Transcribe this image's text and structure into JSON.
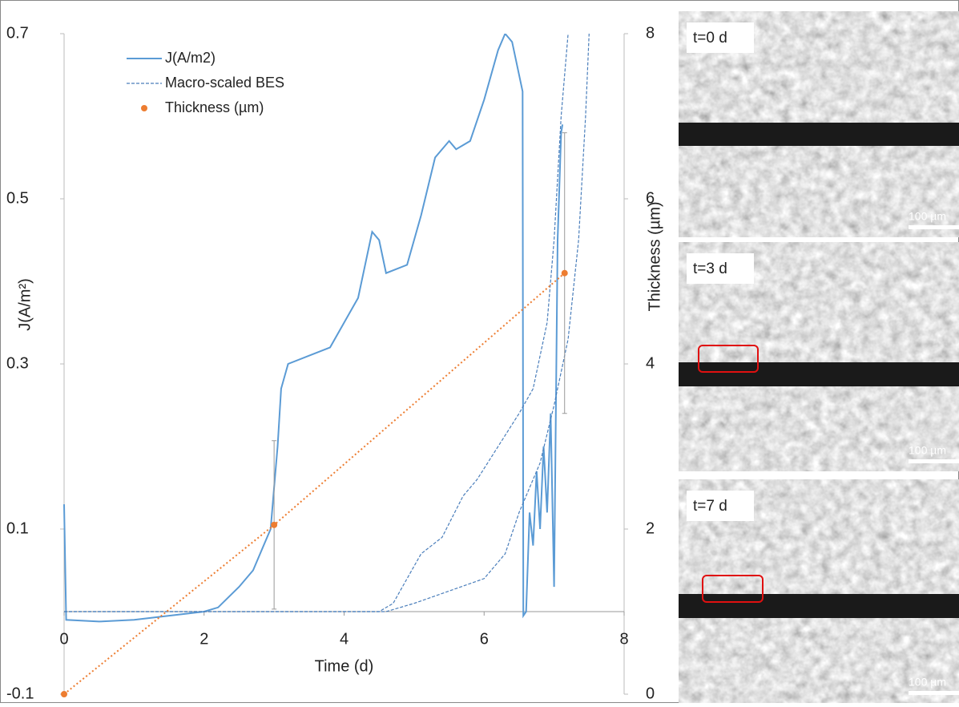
{
  "chart_data": {
    "type": "line",
    "xlabel": "Time (d)",
    "ylabel": "J(A/m²)",
    "y2label": "Thickness (µm)",
    "xlim": [
      0,
      8
    ],
    "xticks": [
      0,
      2,
      4,
      6,
      8
    ],
    "ylim": [
      -0.1,
      0.7
    ],
    "yticks": [
      -0.1,
      0.1,
      0.3,
      0.5,
      0.7
    ],
    "y2lim": [
      0,
      8
    ],
    "y2ticks": [
      0,
      2,
      4,
      6,
      8
    ],
    "series": [
      {
        "name": "J(A/m2)",
        "color": "#5b9bd5",
        "style": "solid",
        "x": [
          0,
          0.03,
          0.5,
          1.0,
          1.5,
          2.0,
          2.2,
          2.5,
          2.7,
          2.85,
          2.95,
          3.0,
          3.05,
          3.1,
          3.2,
          3.5,
          3.8,
          4.0,
          4.2,
          4.4,
          4.5,
          4.6,
          4.9,
          5.1,
          5.3,
          5.5,
          5.6,
          5.8,
          6.0,
          6.2,
          6.3,
          6.4,
          6.55,
          6.56,
          6.6,
          6.65,
          6.7,
          6.75,
          6.8,
          6.85,
          6.9,
          6.95,
          7.0,
          7.05,
          7.1,
          7.12
        ],
        "values": [
          0.13,
          -0.01,
          -0.012,
          -0.01,
          -0.005,
          0.0,
          0.005,
          0.03,
          0.05,
          0.08,
          0.1,
          0.15,
          0.2,
          0.27,
          0.3,
          0.31,
          0.32,
          0.35,
          0.38,
          0.46,
          0.45,
          0.41,
          0.42,
          0.48,
          0.55,
          0.57,
          0.56,
          0.57,
          0.62,
          0.68,
          0.7,
          0.69,
          0.63,
          -0.005,
          0.0,
          0.12,
          0.08,
          0.17,
          0.1,
          0.2,
          0.12,
          0.24,
          0.03,
          0.45,
          0.58,
          0.59
        ]
      },
      {
        "name": "Macro-scaled BES",
        "color": "#4a7ebb",
        "style": "dashed",
        "x": [
          0,
          4.5,
          4.7,
          4.9,
          5.1,
          5.4,
          5.7,
          5.9,
          6.2,
          6.5,
          6.7,
          6.9,
          7.0,
          7.1,
          7.2
        ],
        "values": [
          0,
          0,
          0.01,
          0.04,
          0.07,
          0.09,
          0.14,
          0.16,
          0.2,
          0.24,
          0.27,
          0.35,
          0.45,
          0.6,
          0.7
        ]
      },
      {
        "color": "#4a7ebb",
        "style": "dashed",
        "x": [
          0,
          4.6,
          5.0,
          5.5,
          6.0,
          6.3,
          6.5,
          6.8,
          7.0,
          7.2,
          7.35,
          7.45,
          7.5
        ],
        "values": [
          0,
          0,
          0.01,
          0.025,
          0.04,
          0.07,
          0.12,
          0.18,
          0.25,
          0.33,
          0.45,
          0.6,
          0.7
        ]
      },
      {
        "name": "Thickness (µm)",
        "color": "#ed7d31",
        "style": "dotted-markers",
        "axis": "y2",
        "x": [
          0,
          3.0,
          7.15
        ],
        "values": [
          0,
          2.05,
          5.1
        ],
        "errors": [
          0,
          1.02,
          1.7
        ]
      }
    ]
  },
  "images": [
    {
      "label": "t=0 d",
      "scale": "100 µm"
    },
    {
      "label": "t=3 d",
      "scale": "100 µm"
    },
    {
      "label": "t=7 d",
      "scale": "100 µm"
    }
  ]
}
